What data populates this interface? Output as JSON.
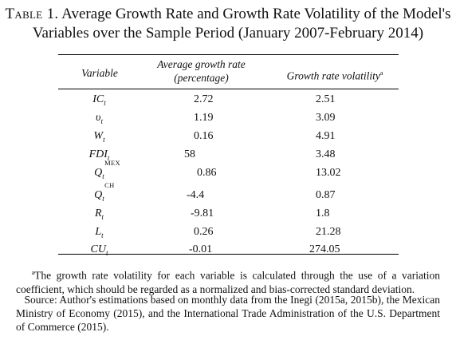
{
  "title": {
    "table_label": "Table 1.",
    "line1": " Average Growth Rate and Growth Rate Volatility of the Model's",
    "line2": "Variables over the Sample Period (January 2007-February 2014)"
  },
  "header": {
    "variable": "Variable",
    "avg_line1": "Average growth rate",
    "avg_line2": "(percentage)",
    "volatility": "Growth rate volatility",
    "volatility_mark": "a"
  },
  "rows": [
    {
      "var": "IC",
      "sub": "t",
      "sup": "",
      "avg": "2.72",
      "vol": "2.51"
    },
    {
      "var": "υ",
      "sub": "t",
      "sup": "",
      "avg": "1.19",
      "vol": "3.09"
    },
    {
      "var": "W",
      "sub": "t",
      "sup": "",
      "avg": "0.16",
      "vol": "4.91"
    },
    {
      "var": "FDI",
      "sub": "t",
      "sup": "",
      "avg": "58",
      "vol": "3.48"
    },
    {
      "var": "Q",
      "sub": "t",
      "sup": "MEX",
      "avg": "0.86",
      "vol": "13.02"
    },
    {
      "var": "Q",
      "sub": "t",
      "sup": "CH",
      "avg": "-4.4",
      "vol": "0.87"
    },
    {
      "var": "R",
      "sub": "t",
      "sup": "",
      "avg": "-9.81",
      "vol": "1.8"
    },
    {
      "var": "L",
      "sub": "t",
      "sup": "",
      "avg": "0.26",
      "vol": "21.28"
    },
    {
      "var": "CU",
      "sub": "t",
      "sup": "",
      "avg": "-0.01",
      "vol": "274.05"
    }
  ],
  "footnotes": {
    "note_mark": "a",
    "note_text": "The growth rate volatility for each variable is calculated through the use of a variation coefficient, which should be regarded as a normalized and bias-corrected standard deviation.",
    "source": "Source: Author's estimations based on monthly data from the Inegi (2015a, 2015b), the Mexican Ministry of Economy (2015), and the International Trade Administration of the U.S. Department of Commerce (2015)."
  }
}
